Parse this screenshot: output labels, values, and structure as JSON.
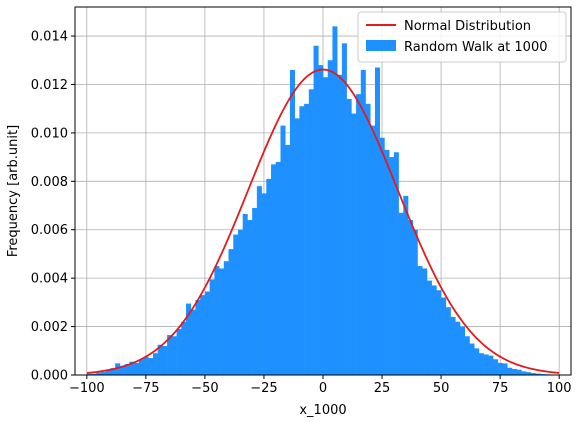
{
  "chart_data": {
    "type": "bar",
    "title": "",
    "xlabel": "x_1000",
    "ylabel": "Frequency [arb.unit]",
    "xlim": [
      -105,
      105
    ],
    "ylim": [
      0,
      0.0152
    ],
    "grid": true,
    "legend_position": "top-right",
    "xticks": [
      -100,
      -75,
      -50,
      -25,
      0,
      25,
      50,
      75,
      100
    ],
    "xtick_labels": [
      "−100",
      "−75",
      "−50",
      "−25",
      "0",
      "25",
      "50",
      "75",
      "100"
    ],
    "yticks": [
      0,
      0.002,
      0.004,
      0.006,
      0.008,
      0.01,
      0.012,
      0.014
    ],
    "ytick_labels": [
      "0.000",
      "0.002",
      "0.004",
      "0.006",
      "0.008",
      "0.010",
      "0.012",
      "0.014"
    ],
    "series": [
      {
        "name": "Random Walk at 1000",
        "kind": "histogram",
        "color": "#1e90ff",
        "bin_start": -100,
        "bin_width": 2,
        "values": [
          5e-05,
          5e-05,
          0.0001,
          0.00012,
          0.0002,
          0.00028,
          0.00048,
          0.00038,
          0.00045,
          0.00055,
          0.0005,
          0.00065,
          0.00075,
          0.0007,
          0.0009,
          0.00125,
          0.0012,
          0.00165,
          0.0016,
          0.0019,
          0.0022,
          0.00295,
          0.0027,
          0.0031,
          0.0033,
          0.00345,
          0.00395,
          0.0045,
          0.0044,
          0.0047,
          0.0052,
          0.0058,
          0.006,
          0.00665,
          0.0064,
          0.0069,
          0.0078,
          0.0075,
          0.0081,
          0.0087,
          0.0088,
          0.0103,
          0.0095,
          0.0126,
          0.0106,
          0.0111,
          0.0112,
          0.0118,
          0.0136,
          0.0128,
          0.0123,
          0.013,
          0.0144,
          0.0124,
          0.0137,
          0.0114,
          0.0108,
          0.0116,
          0.0126,
          0.0112,
          0.0103,
          0.0127,
          0.0098,
          0.0093,
          0.009,
          0.0092,
          0.0067,
          0.0074,
          0.0064,
          0.006,
          0.0045,
          0.0044,
          0.0039,
          0.0037,
          0.0035,
          0.0032,
          0.0028,
          0.0024,
          0.0022,
          0.002,
          0.0016,
          0.0013,
          0.0011,
          0.0009,
          0.00085,
          0.0008,
          0.00065,
          0.0005,
          0.00048,
          0.0003,
          0.00025,
          0.00022,
          0.00015,
          0.00012,
          8e-05,
          6e-05,
          4e-05,
          3e-05,
          2e-05,
          1e-05
        ]
      },
      {
        "name": "Normal Distribution",
        "kind": "line",
        "color": "#e41a1c",
        "mean": 0,
        "std": 31.62,
        "x_range": [
          -100,
          100
        ]
      }
    ]
  }
}
